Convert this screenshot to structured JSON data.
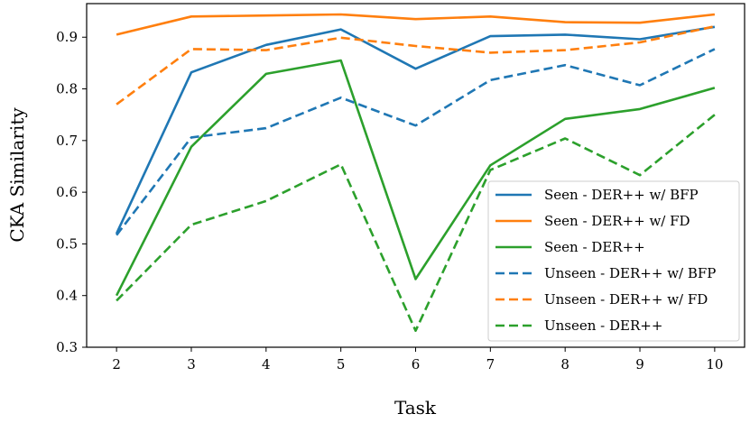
{
  "chart_data": {
    "type": "line",
    "xlabel": "Task",
    "ylabel": "CKA Similarity",
    "x": [
      2,
      3,
      4,
      5,
      6,
      7,
      8,
      9,
      10
    ],
    "xlim": [
      1.6,
      10.4
    ],
    "ylim": [
      0.3,
      0.965
    ],
    "xticks": [
      "2",
      "3",
      "4",
      "5",
      "6",
      "7",
      "8",
      "9",
      "10"
    ],
    "yticks": [
      "0.3",
      "0.4",
      "0.5",
      "0.6",
      "0.7",
      "0.8",
      "0.9"
    ],
    "grid": false,
    "legend_position": "lower-right",
    "series": [
      {
        "name": "Seen - DER++ w/ BFP",
        "color": "#1f77b4",
        "dashed": false,
        "values": [
          0.52,
          0.832,
          0.885,
          0.915,
          0.839,
          0.902,
          0.905,
          0.896,
          0.92
        ]
      },
      {
        "name": "Seen - DER++ w/ FD",
        "color": "#ff7f0e",
        "dashed": false,
        "values": [
          0.905,
          0.94,
          0.942,
          0.944,
          0.935,
          0.94,
          0.929,
          0.928,
          0.944
        ]
      },
      {
        "name": "Seen - DER++",
        "color": "#2ca02c",
        "dashed": false,
        "values": [
          0.4,
          0.688,
          0.829,
          0.855,
          0.432,
          0.652,
          0.742,
          0.761,
          0.802
        ]
      },
      {
        "name": "Unseen - DER++ w/ BFP",
        "color": "#1f77b4",
        "dashed": true,
        "values": [
          0.517,
          0.706,
          0.724,
          0.783,
          0.729,
          0.817,
          0.846,
          0.807,
          0.877
        ]
      },
      {
        "name": "Unseen - DER++ w/ FD",
        "color": "#ff7f0e",
        "dashed": true,
        "values": [
          0.77,
          0.877,
          0.875,
          0.899,
          0.883,
          0.87,
          0.875,
          0.89,
          0.921
        ]
      },
      {
        "name": "Unseen - DER++",
        "color": "#2ca02c",
        "dashed": true,
        "values": [
          0.39,
          0.537,
          0.583,
          0.654,
          0.332,
          0.643,
          0.704,
          0.633,
          0.75
        ]
      }
    ]
  }
}
